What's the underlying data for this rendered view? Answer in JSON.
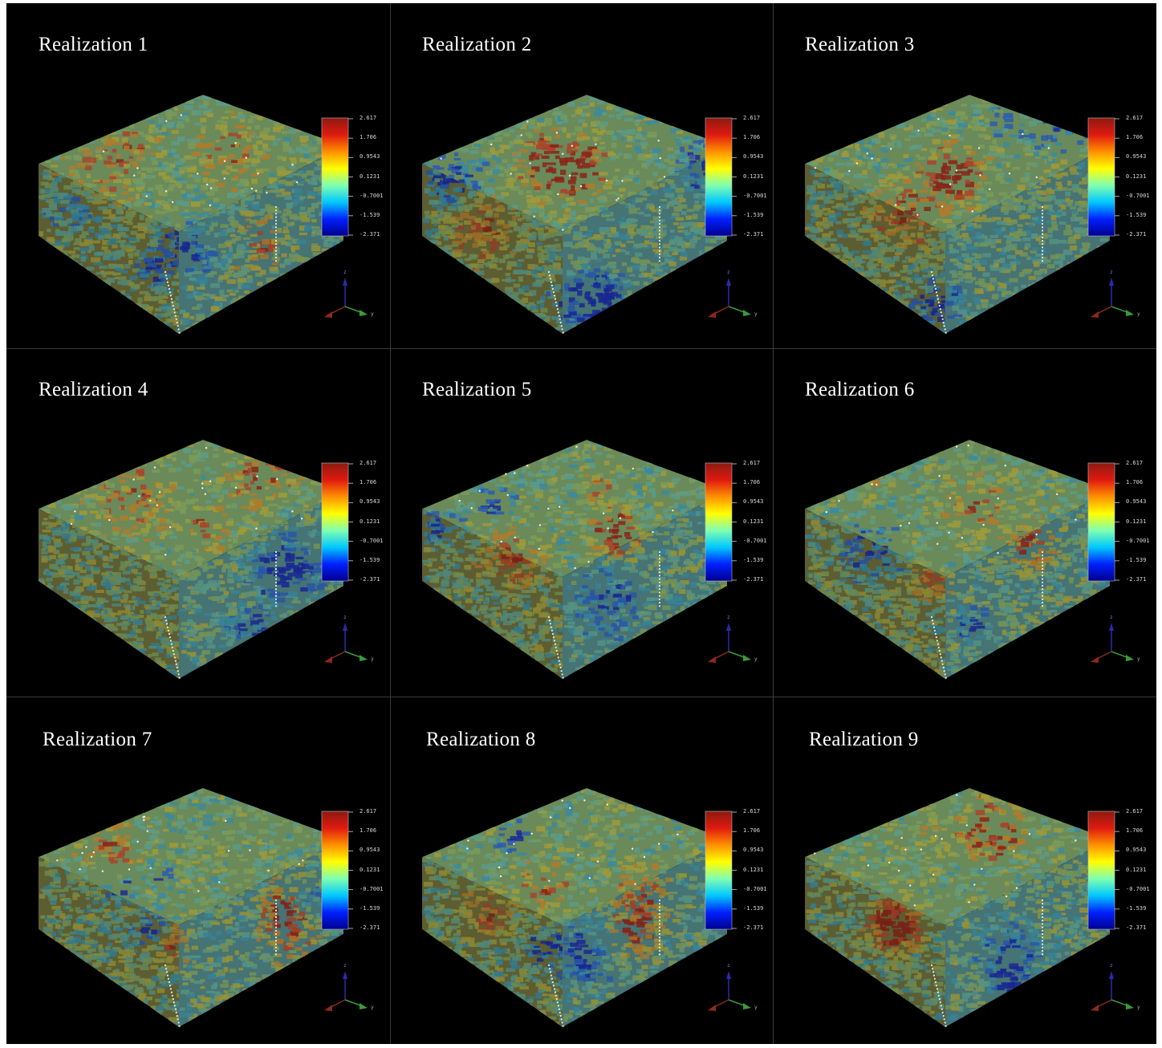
{
  "panels": [
    {
      "title": "Realization 1"
    },
    {
      "title": "Realization 2"
    },
    {
      "title": "Realization 3"
    },
    {
      "title": "Realization 4"
    },
    {
      "title": "Realization 5"
    },
    {
      "title": "Realization 6"
    },
    {
      "title": "Realization 7"
    },
    {
      "title": "Realization 8"
    },
    {
      "title": "Realization 9"
    }
  ],
  "colorbar": {
    "ticks": [
      "2.617",
      "1.706",
      "0.9543",
      "0.1231",
      "-0.7001",
      "-1.539",
      "-2.371"
    ],
    "min": -2.371,
    "max": 2.617,
    "colors": [
      "#00008f",
      "#0020ff",
      "#00c8ff",
      "#80ffb0",
      "#ffff00",
      "#ff9000",
      "#e01a10",
      "#8c1a10"
    ]
  },
  "axes_triad": {
    "z_label": "z",
    "y_label": "y",
    "x_color": "#8a2a1a",
    "y_color": "#3a9a3a",
    "z_color": "#2a2aaa"
  },
  "colors": {
    "background": "#000000",
    "separator": "#3a3a3a",
    "title": "#ffffff"
  }
}
